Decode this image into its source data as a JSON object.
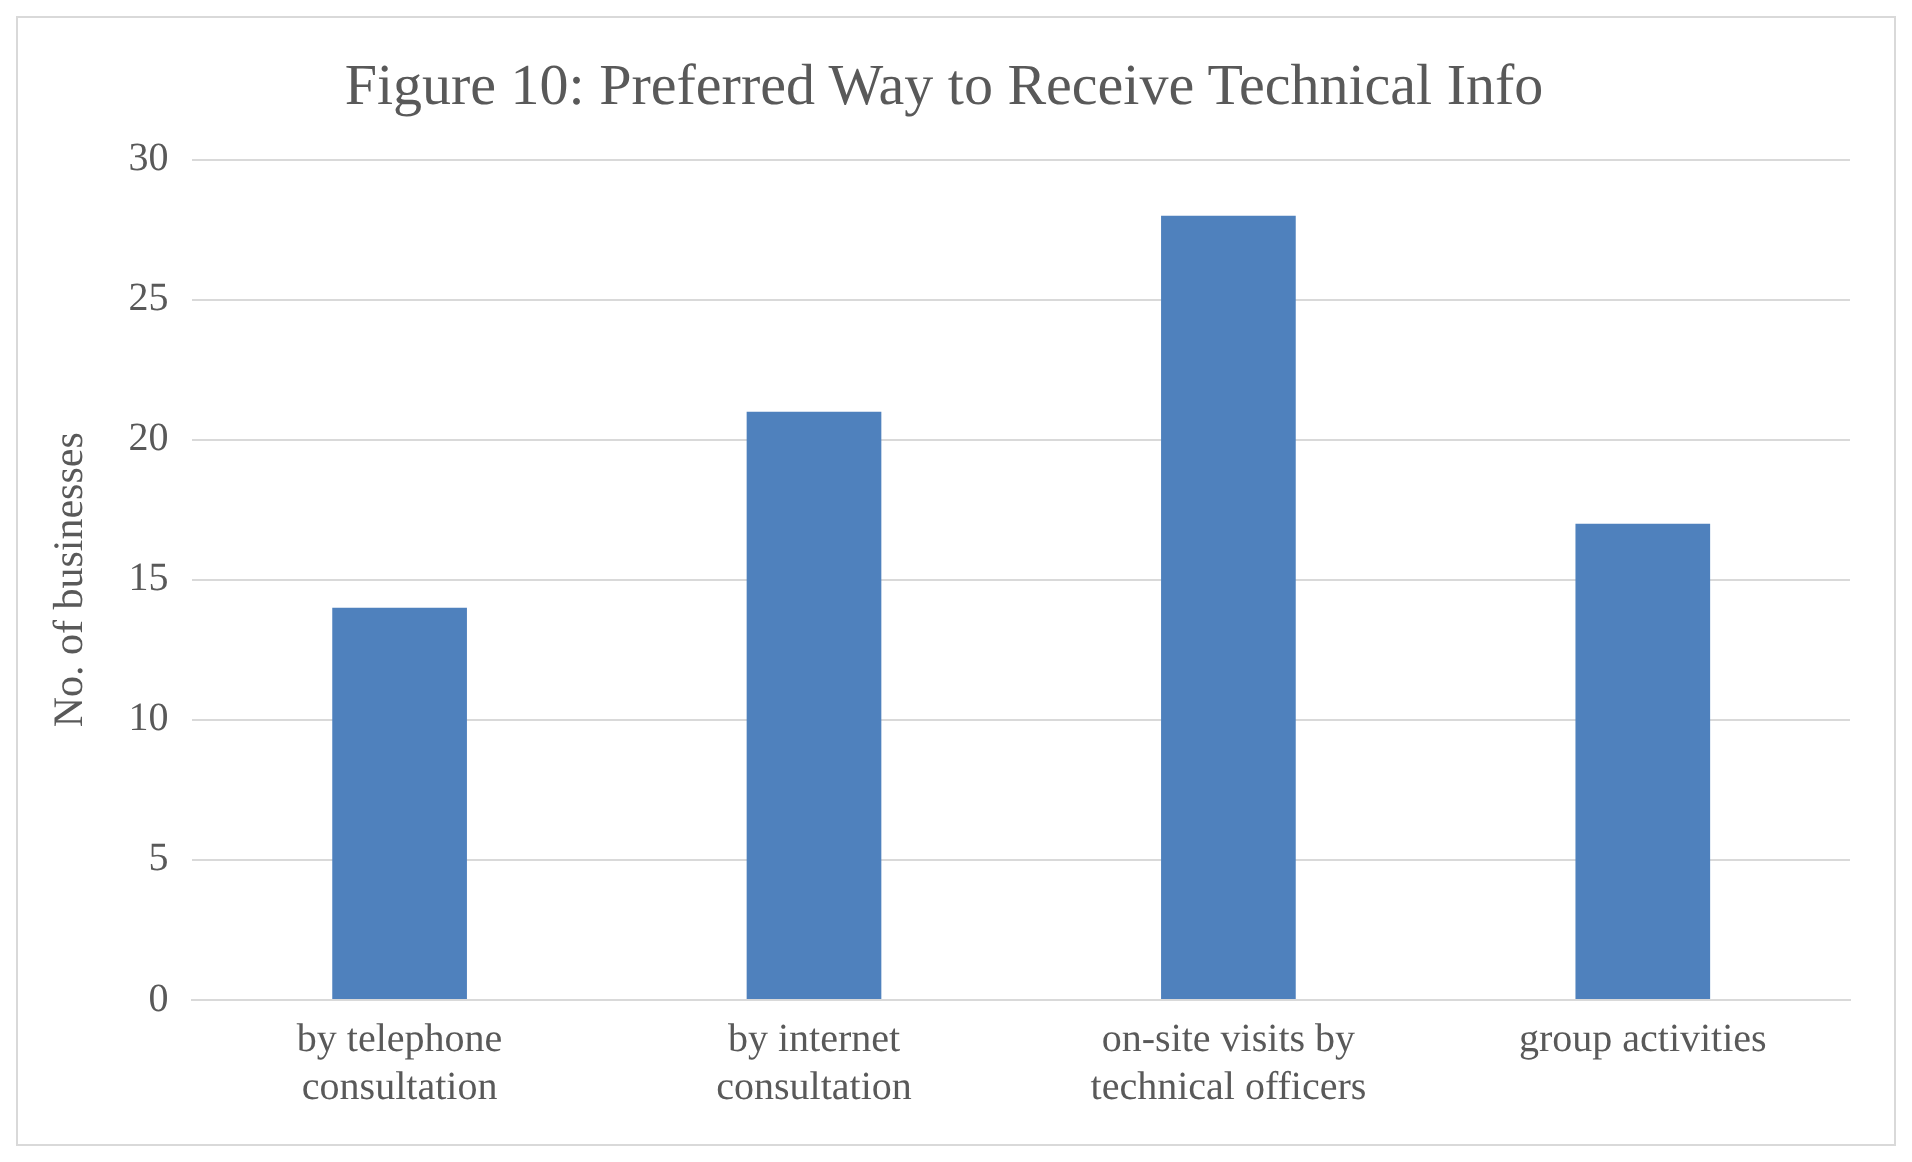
{
  "chart_data": {
    "type": "bar",
    "title": "Figure 10: Preferred Way to Receive Technical Info",
    "ylabel": "No. of businesses",
    "categories": [
      "by telephone consultation",
      "by internet consultation",
      "on-site visits by technical officers",
      "group activities"
    ],
    "values": [
      14,
      21,
      28,
      17
    ],
    "color": "#4f81bd",
    "ylim": [
      0,
      30
    ],
    "yticks": [
      0,
      5,
      10,
      15,
      20,
      25,
      30
    ],
    "grid": "y",
    "legend": false
  }
}
